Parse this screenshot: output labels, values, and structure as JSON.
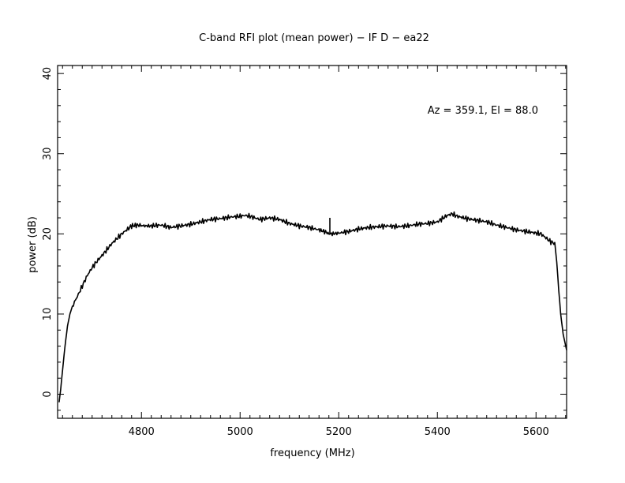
{
  "chart_data": {
    "type": "line",
    "title": "C-band RFI plot (mean power) − IF D − ea22",
    "xlabel": "frequency (MHz)",
    "ylabel": "power (dB)",
    "annotation": "Az = 359.1, El = 88.0",
    "xlim": [
      4630,
      5662
    ],
    "ylim": [
      -3,
      41
    ],
    "x_ticks": [
      4800,
      5000,
      5200,
      5400,
      5600
    ],
    "y_ticks": [
      0,
      10,
      20,
      30,
      40
    ],
    "grid": false,
    "legend": "none",
    "line_color": "#000000",
    "series": [
      {
        "x": [
          4633,
          4636,
          4640,
          4645,
          4650,
          4655,
          4660,
          4670,
          4680,
          4690,
          4700,
          4710,
          4720,
          4740,
          4760,
          4780,
          4795,
          4805,
          4820,
          4840,
          4860,
          4880,
          4900,
          4920,
          4940,
          4960,
          4980,
          5000,
          5010,
          5020,
          5030,
          5040,
          5060,
          5080,
          5100,
          5120,
          5140,
          5160,
          5175,
          5180,
          5185,
          5200,
          5220,
          5240,
          5260,
          5280,
          5300,
          5320,
          5340,
          5360,
          5380,
          5400,
          5420,
          5430,
          5440,
          5460,
          5480,
          5500,
          5520,
          5540,
          5560,
          5580,
          5600,
          5610,
          5620,
          5630,
          5638,
          5642,
          5646,
          5650,
          5655,
          5662
        ],
        "y": [
          -1,
          0.5,
          3,
          6,
          8.5,
          10,
          11,
          12.2,
          13.5,
          14.8,
          15.8,
          16.6,
          17.3,
          18.8,
          20.0,
          21.0,
          21.1,
          21.0,
          21.0,
          21.1,
          20.8,
          21.0,
          21.2,
          21.5,
          21.8,
          21.9,
          22.1,
          22.2,
          22.3,
          22.2,
          22.0,
          21.8,
          22.0,
          21.8,
          21.3,
          21.0,
          20.8,
          20.5,
          20.2,
          20.0,
          20.0,
          20.1,
          20.3,
          20.6,
          20.8,
          20.9,
          21.0,
          20.9,
          21.0,
          21.2,
          21.3,
          21.5,
          22.3,
          22.5,
          22.2,
          21.9,
          21.7,
          21.5,
          21.1,
          20.8,
          20.5,
          20.3,
          20.1,
          20.0,
          19.5,
          19.0,
          18.8,
          16.5,
          13,
          10,
          7.5,
          5.5
        ]
      }
    ]
  }
}
